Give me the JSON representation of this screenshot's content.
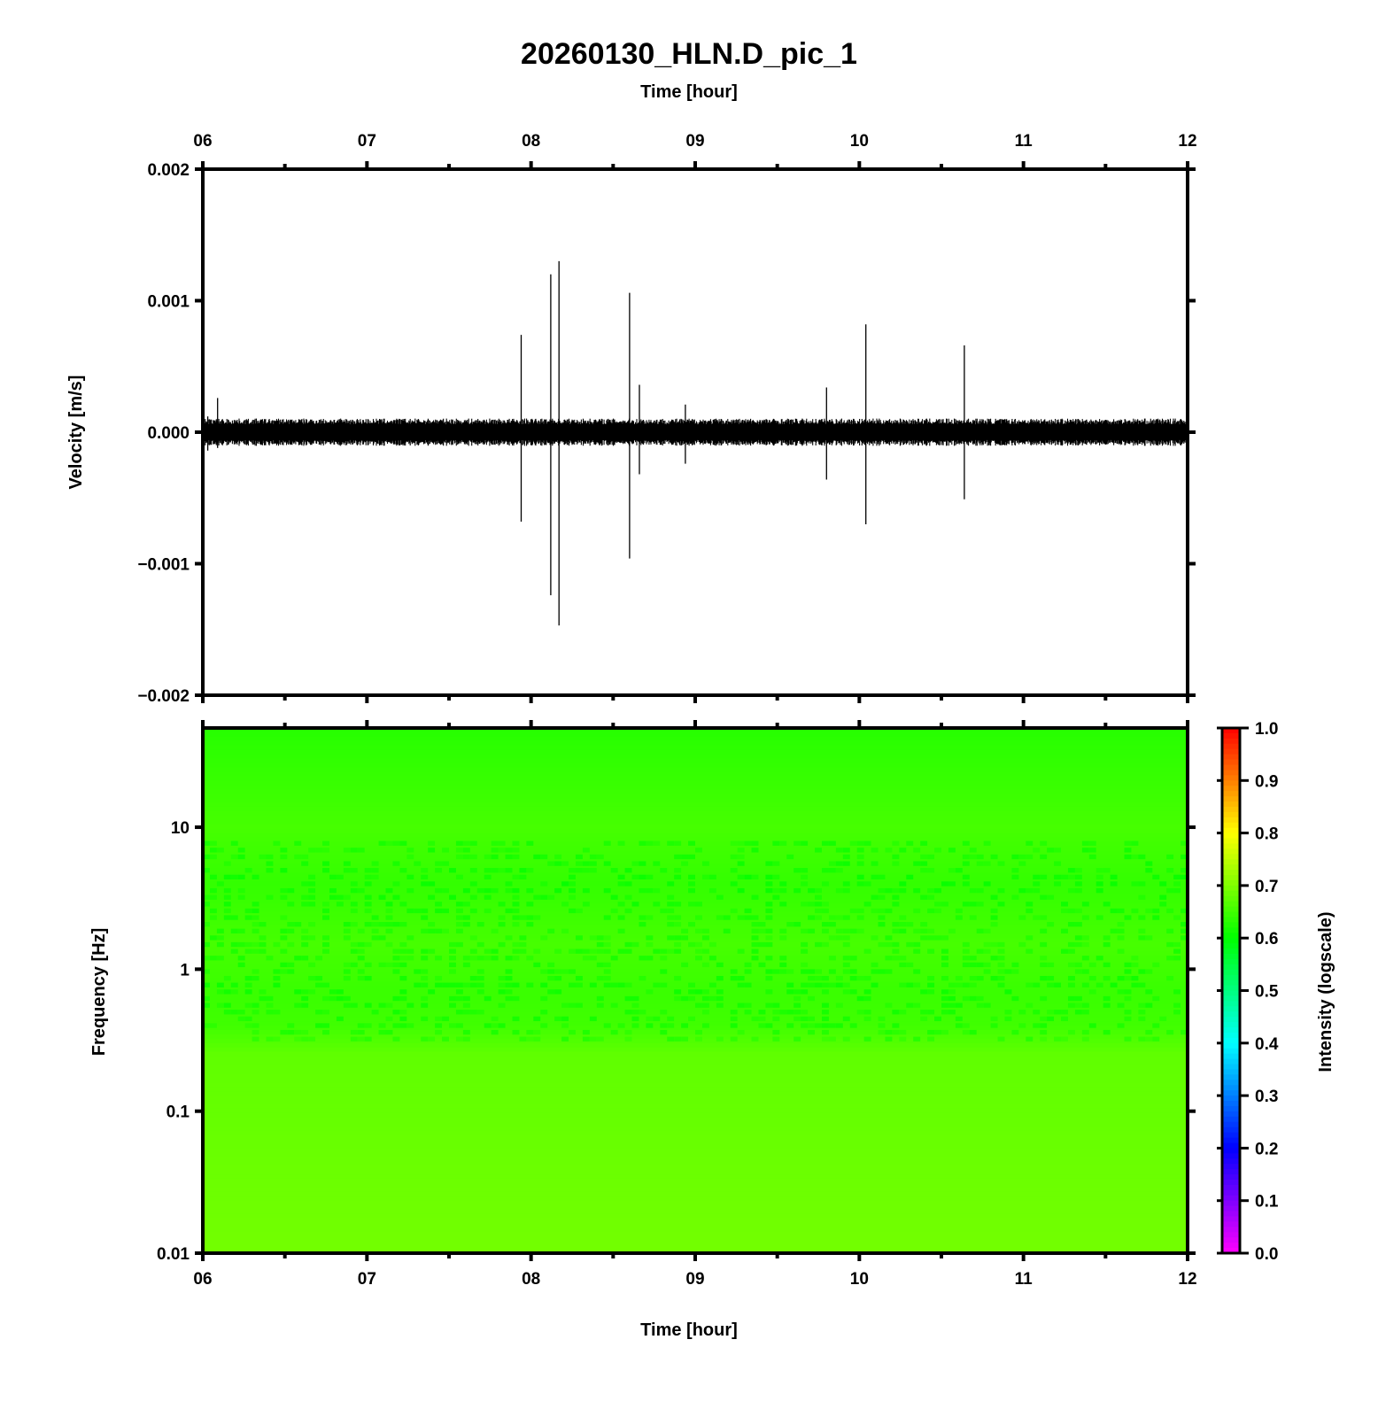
{
  "chart_data": [
    {
      "type": "line",
      "title": "20260130_HLN.D_pic_1",
      "xlabel": "Time [hour]",
      "ylabel": "Velocity [m/s]",
      "xlim": [
        6,
        12
      ],
      "ylim": [
        -0.002,
        0.002
      ],
      "x_ticks": [
        "06",
        "07",
        "08",
        "09",
        "10",
        "11",
        "12"
      ],
      "y_ticks": [
        "0.002",
        "0.001",
        "0.000",
        "−0.001",
        "−0.002"
      ],
      "y_tick_values": [
        0.002,
        0.001,
        0.0,
        -0.001,
        -0.002
      ],
      "noise_amplitude": 8e-05,
      "events": [
        {
          "x": 6.03,
          "y_max": 0.00012,
          "y_min": -0.00014
        },
        {
          "x": 6.09,
          "y_max": 0.00026,
          "y_min": -0.00012
        },
        {
          "x": 7.94,
          "y_max": 0.00074,
          "y_min": -0.00068
        },
        {
          "x": 8.12,
          "y_max": 0.0012,
          "y_min": -0.00124
        },
        {
          "x": 8.17,
          "y_max": 0.0013,
          "y_min": -0.00147
        },
        {
          "x": 8.6,
          "y_max": 0.00106,
          "y_min": -0.00096
        },
        {
          "x": 8.66,
          "y_max": 0.00036,
          "y_min": -0.00032
        },
        {
          "x": 8.94,
          "y_max": 0.00021,
          "y_min": -0.00024
        },
        {
          "x": 9.8,
          "y_max": 0.00034,
          "y_min": -0.00036
        },
        {
          "x": 10.04,
          "y_max": 0.00082,
          "y_min": -0.0007
        },
        {
          "x": 10.64,
          "y_max": 0.00066,
          "y_min": -0.00051
        }
      ]
    },
    {
      "type": "heatmap",
      "xlabel": "Time [hour]",
      "ylabel": "Frequency [Hz]",
      "xlim": [
        6,
        12
      ],
      "ylim": [
        0.01,
        50
      ],
      "yscale": "log",
      "x_ticks": [
        "06",
        "07",
        "08",
        "09",
        "10",
        "11",
        "12"
      ],
      "y_ticks": [
        "10",
        "1",
        "0.1",
        "0.01"
      ],
      "y_tick_values": [
        10,
        1,
        0.1,
        0.01
      ],
      "colorbar": {
        "label": "Intensity (logscale)",
        "range": [
          0.0,
          1.0
        ],
        "ticks": [
          "1.0",
          "0.9",
          "0.8",
          "0.7",
          "0.6",
          "0.5",
          "0.4",
          "0.3",
          "0.2",
          "0.1",
          "0.0"
        ],
        "tick_values": [
          1.0,
          0.9,
          0.8,
          0.7,
          0.6,
          0.5,
          0.4,
          0.3,
          0.2,
          0.1,
          0.0
        ],
        "colormap": [
          "#ff00ff",
          "#0000ff",
          "#00ffff",
          "#00ff00",
          "#ffff00",
          "#ff0000"
        ]
      },
      "intensity_profile": [
        {
          "freq": 50,
          "value": 0.63
        },
        {
          "freq": 10,
          "value": 0.655
        },
        {
          "freq": 4,
          "value": 0.64
        },
        {
          "freq": 1.5,
          "value": 0.655
        },
        {
          "freq": 0.7,
          "value": 0.645
        },
        {
          "freq": 0.4,
          "value": 0.65
        },
        {
          "freq": 0.25,
          "value": 0.675
        },
        {
          "freq": 0.01,
          "value": 0.69
        }
      ]
    }
  ]
}
